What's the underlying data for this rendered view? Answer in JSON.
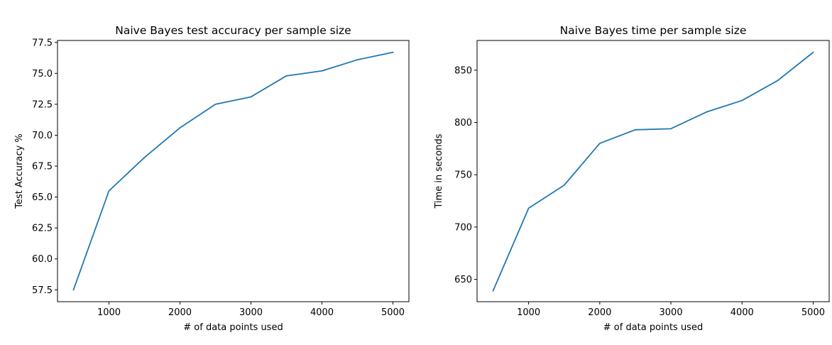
{
  "chart_data": [
    {
      "type": "line",
      "title": "Naive Bayes test accuracy per sample size",
      "xlabel": "# of data points used",
      "ylabel": "Test Accuracy %",
      "x": [
        500,
        1000,
        1500,
        2000,
        2500,
        3000,
        3500,
        4000,
        4500,
        5000
      ],
      "series": [
        {
          "name": "accuracy",
          "values": [
            57.5,
            65.5,
            68.2,
            70.6,
            72.5,
            73.1,
            74.8,
            75.2,
            76.1,
            76.7
          ]
        }
      ],
      "xlim": [
        275,
        5225
      ],
      "ylim": [
        56.54,
        77.66
      ],
      "xticks": [
        1000,
        2000,
        3000,
        4000,
        5000
      ],
      "xtick_labels": [
        "1000",
        "2000",
        "3000",
        "4000",
        "5000"
      ],
      "yticks": [
        57.5,
        60.0,
        62.5,
        65.0,
        67.5,
        70.0,
        72.5,
        75.0,
        77.5
      ],
      "ytick_labels": [
        "57.5",
        "60.0",
        "62.5",
        "65.0",
        "67.5",
        "70.0",
        "72.5",
        "75.0",
        "77.5"
      ],
      "grid": false
    },
    {
      "type": "line",
      "title": "Naive Bayes time per sample size",
      "xlabel": "# of data points used",
      "ylabel": "Time in seconds",
      "x": [
        500,
        1000,
        1500,
        2000,
        2500,
        3000,
        3500,
        4000,
        4500,
        5000
      ],
      "series": [
        {
          "name": "time",
          "values": [
            639,
            718,
            740,
            780,
            793,
            794,
            810,
            821,
            840,
            867
          ]
        }
      ],
      "xlim": [
        275,
        5225
      ],
      "ylim": [
        628.6,
        878.4
      ],
      "xticks": [
        1000,
        2000,
        3000,
        4000,
        5000
      ],
      "xtick_labels": [
        "1000",
        "2000",
        "3000",
        "4000",
        "5000"
      ],
      "yticks": [
        650,
        700,
        750,
        800,
        850
      ],
      "ytick_labels": [
        "650",
        "700",
        "750",
        "800",
        "850"
      ],
      "grid": false
    }
  ],
  "colors": {
    "series": "#1f77b4",
    "axes": "#000000",
    "background": "#ffffff"
  }
}
